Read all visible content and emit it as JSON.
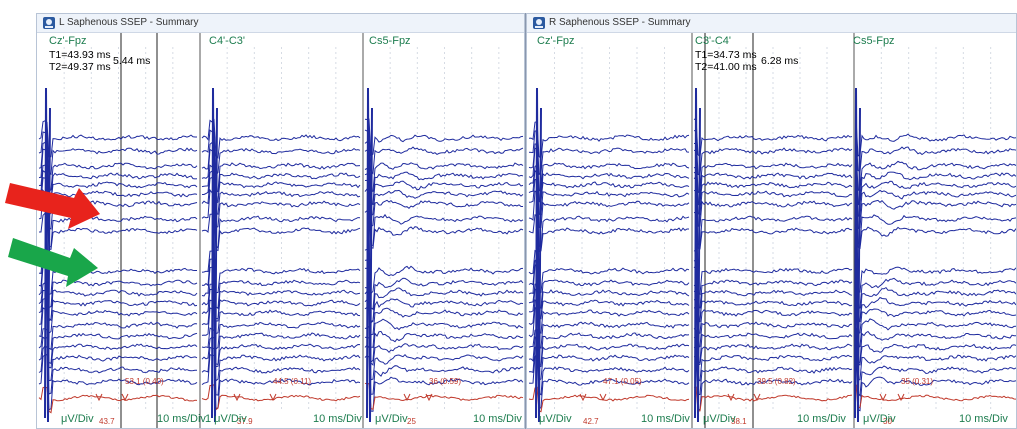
{
  "left_window": {
    "title": "L Saphenous SSEP - Summary",
    "channels": [
      "Cz'-Fpz",
      "C4'-C3'",
      "Cs5-Fpz"
    ],
    "cursor_t1": "T1=43.93 ms",
    "cursor_t2": "T2=49.37 ms",
    "cursor_delta": "5.44 ms",
    "scale_labels": [
      "μV/Div",
      "10 ms/Div",
      "1 μV/Div",
      "10 ms/Div",
      "μV/Div",
      "10 ms/Div"
    ],
    "markers": [
      "43.7",
      "53.1 (0.40)",
      "37.9",
      "44.5 (0.11)",
      "25",
      "36 (0.59)"
    ]
  },
  "right_window": {
    "title": "R Saphenous SSEP - Summary",
    "channels": [
      "Cz'-Fpz",
      "C3'-C4'",
      "Cs5-Fpz"
    ],
    "cursor_t1": "T1=34.73 ms",
    "cursor_t2": "T2=41.00 ms",
    "cursor_delta": "6.28 ms",
    "scale_labels": [
      "μV/Div",
      "10 ms/Div",
      "μV/Div",
      "10 ms/Div",
      "μV/Div",
      "10 ms/Div"
    ],
    "markers": [
      "42.7",
      "47.1 (0.05)",
      "38.1",
      "39.5 (0.82)",
      "30",
      "35 (0.31)"
    ]
  },
  "colors": {
    "trace": "#1f2b9e",
    "summary_trace": "#c0392b",
    "label_green": "#1d7d4f",
    "arrow_red": "#e8231c",
    "arrow_green": "#19a64a"
  },
  "icons": [
    "app-icon",
    "red-arrow-icon",
    "green-arrow-icon"
  ]
}
